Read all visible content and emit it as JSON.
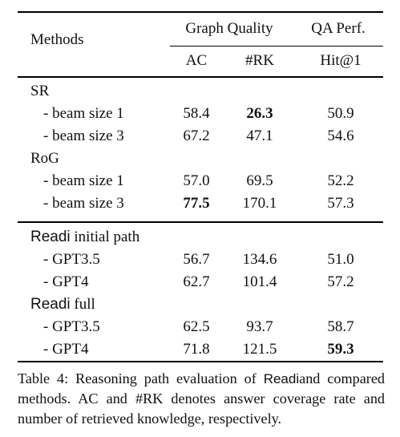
{
  "header": {
    "methods": "Methods",
    "graph_quality": "Graph Quality",
    "qa_perf": "QA Perf.",
    "ac": "AC",
    "rk": "#RK",
    "hit1": "Hit@1"
  },
  "groups": [
    {
      "title": "SR",
      "title_suffix": "",
      "rows": [
        {
          "label": "- beam size 1",
          "ac": "58.4",
          "rk": "26.3",
          "hit": "50.9",
          "bold": "rk"
        },
        {
          "label": "- beam size 3",
          "ac": "67.2",
          "rk": "47.1",
          "hit": "54.6",
          "bold": ""
        }
      ]
    },
    {
      "title": "RoG",
      "title_suffix": "",
      "rows": [
        {
          "label": "- beam size 1",
          "ac": "57.0",
          "rk": "69.5",
          "hit": "52.2",
          "bold": ""
        },
        {
          "label": "- beam size 3",
          "ac": "77.5",
          "rk": "170.1",
          "hit": "57.3",
          "bold": "ac"
        }
      ]
    },
    {
      "title": "Readi",
      "title_suffix": " initial path",
      "rows": [
        {
          "label": "- GPT3.5",
          "ac": "56.7",
          "rk": "134.6",
          "hit": "51.0",
          "bold": ""
        },
        {
          "label": "- GPT4",
          "ac": "62.7",
          "rk": "101.4",
          "hit": "57.2",
          "bold": ""
        }
      ]
    },
    {
      "title": "Readi",
      "title_suffix": " full",
      "rows": [
        {
          "label": "- GPT3.5",
          "ac": "62.5",
          "rk": "93.7",
          "hit": "58.7",
          "bold": ""
        },
        {
          "label": "- GPT4",
          "ac": "71.8",
          "rk": "121.5",
          "hit": "59.3",
          "bold": "hit"
        }
      ]
    }
  ],
  "caption": {
    "prefix": "Table 4: Reasoning path evaluation of ",
    "name": "Readi",
    "suffix": "and compared methods. AC and #RK denotes answer coverage rate and number of retrieved knowledge, respectively."
  }
}
